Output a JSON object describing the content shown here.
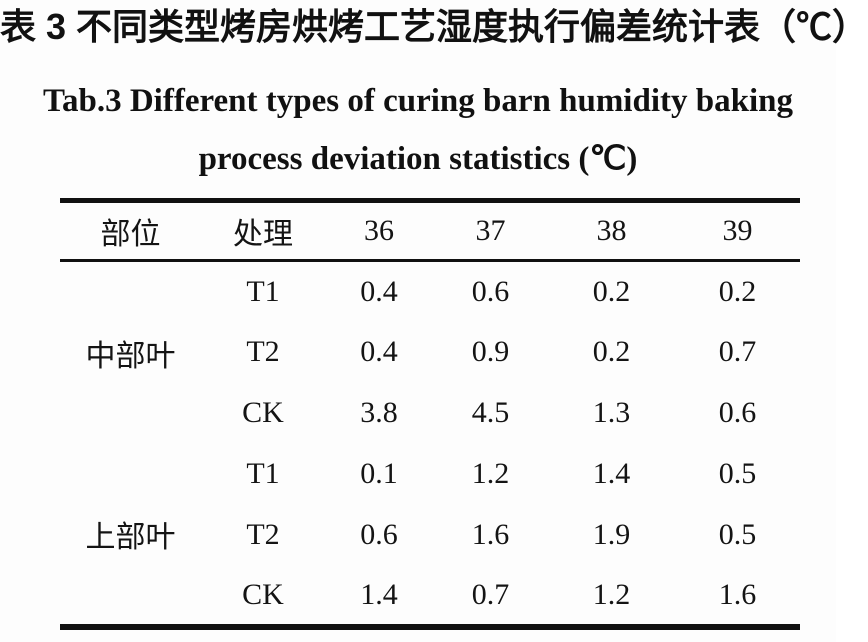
{
  "page": {
    "title_zh": "表 3 不同类型烤房烘烤工艺湿度执行偏差统计表（℃）",
    "title_en_line1": "Tab.3 Different types of curing barn humidity baking",
    "title_en_line2": "process deviation statistics (℃)"
  },
  "colors": {
    "text": "#141414",
    "rule": "#111111",
    "background": "#fdfdfd"
  },
  "table": {
    "headers": [
      "部位",
      "处理",
      "36",
      "37",
      "38",
      "39"
    ],
    "groups": [
      {
        "position": "中部叶",
        "rows": [
          {
            "treatment": "T1",
            "values": [
              "0.4",
              "0.6",
              "0.2",
              "0.2"
            ]
          },
          {
            "treatment": "T2",
            "values": [
              "0.4",
              "0.9",
              "0.2",
              "0.7"
            ]
          },
          {
            "treatment": "CK",
            "values": [
              "3.8",
              "4.5",
              "1.3",
              "0.6"
            ]
          }
        ]
      },
      {
        "position": "上部叶",
        "rows": [
          {
            "treatment": "T1",
            "values": [
              "0.1",
              "1.2",
              "1.4",
              "0.5"
            ]
          },
          {
            "treatment": "T2",
            "values": [
              "0.6",
              "1.6",
              "1.9",
              "0.5"
            ]
          },
          {
            "treatment": "CK",
            "values": [
              "1.4",
              "0.7",
              "1.2",
              "1.6"
            ]
          }
        ]
      }
    ]
  },
  "chart_data": {
    "type": "table",
    "title": "Tab.3 Different types of curing barn humidity baking process deviation statistics (℃)",
    "columns": [
      "部位",
      "处理",
      "36",
      "37",
      "38",
      "39"
    ],
    "rows": [
      [
        "中部叶",
        "T1",
        0.4,
        0.6,
        0.2,
        0.2
      ],
      [
        "中部叶",
        "T2",
        0.4,
        0.9,
        0.2,
        0.7
      ],
      [
        "中部叶",
        "CK",
        3.8,
        4.5,
        1.3,
        0.6
      ],
      [
        "上部叶",
        "T1",
        0.1,
        1.2,
        1.4,
        0.5
      ],
      [
        "上部叶",
        "T2",
        0.6,
        1.6,
        1.9,
        0.5
      ],
      [
        "上部叶",
        "CK",
        1.4,
        0.7,
        1.2,
        1.6
      ]
    ]
  }
}
